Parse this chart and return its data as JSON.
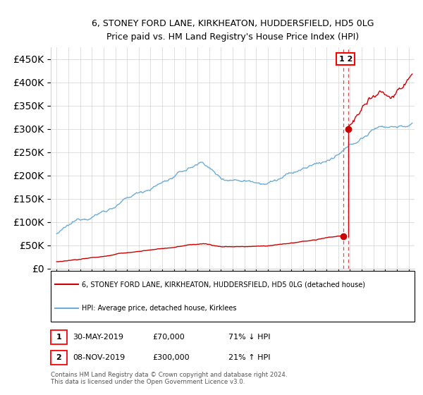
{
  "title_line1": "6, STONEY FORD LANE, KIRKHEATON, HUDDERSFIELD, HD5 0LG",
  "title_line2": "Price paid vs. HM Land Registry's House Price Index (HPI)",
  "ytick_values": [
    0,
    50000,
    100000,
    150000,
    200000,
    250000,
    300000,
    350000,
    400000,
    450000
  ],
  "xlim_start": 1994.5,
  "xlim_end": 2025.5,
  "ylim": [
    0,
    475000
  ],
  "legend_line1": "6, STONEY FORD LANE, KIRKHEATON, HUDDERSFIELD, HD5 0LG (detached house)",
  "legend_line2": "HPI: Average price, detached house, Kirklees",
  "sale1_date": "30-MAY-2019",
  "sale1_price": "£70,000",
  "sale1_hpi": "71% ↓ HPI",
  "sale2_date": "08-NOV-2019",
  "sale2_price": "£300,000",
  "sale2_hpi": "21% ↑ HPI",
  "footnote": "Contains HM Land Registry data © Crown copyright and database right 2024.\nThis data is licensed under the Open Government Licence v3.0.",
  "sale1_year": 2019.41,
  "sale1_value": 70000,
  "sale2_year": 2019.85,
  "sale2_value": 300000,
  "vline1_x": 2019.41,
  "vline2_x": 2019.85,
  "hpi_color": "#6baed6",
  "price_color": "#cc0000",
  "vline_color": "#cc0000"
}
